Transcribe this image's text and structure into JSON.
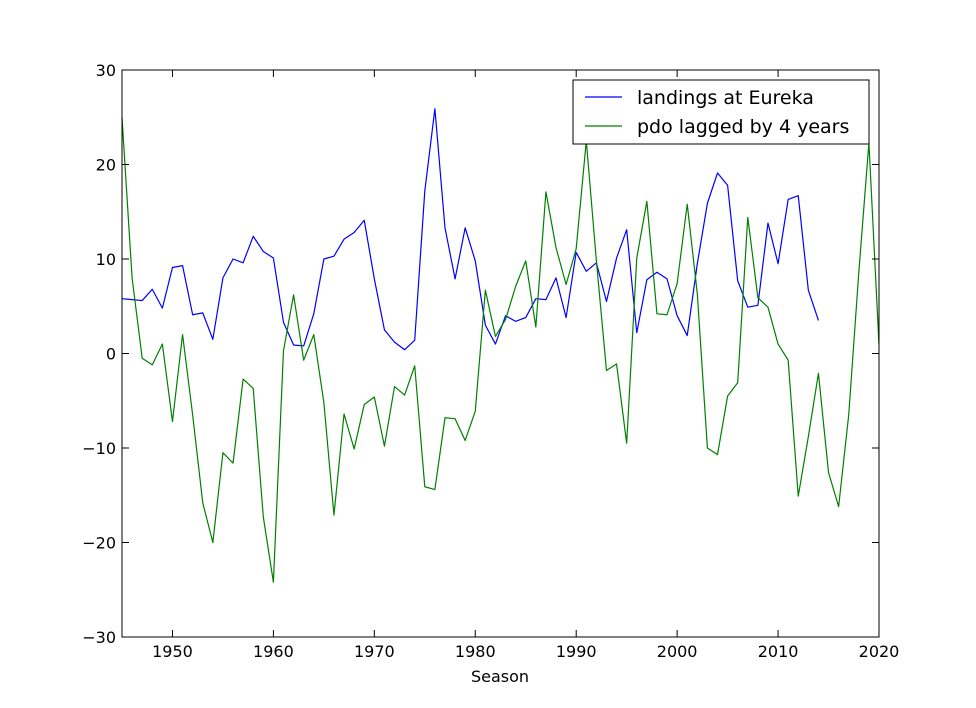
{
  "chart_data": {
    "type": "line",
    "title": "",
    "xlabel": "Season",
    "ylabel": "",
    "xlim": [
      1945,
      2020
    ],
    "ylim": [
      -30,
      30
    ],
    "x_ticks": [
      1950,
      1960,
      1970,
      1980,
      1990,
      2000,
      2010,
      2020
    ],
    "y_ticks": [
      -30,
      -20,
      -10,
      0,
      10,
      20,
      30
    ],
    "x_tick_labels": [
      "1950",
      "1960",
      "1970",
      "1980",
      "1990",
      "2000",
      "2010",
      "2020"
    ],
    "y_tick_labels": [
      "−30",
      "−20",
      "−10",
      "0",
      "10",
      "20",
      "30"
    ],
    "grid": false,
    "legend_position": "top-right",
    "series": [
      {
        "name": "landings at Eureka",
        "color": "#0000ff",
        "x": [
          1945,
          1946,
          1947,
          1948,
          1949,
          1950,
          1951,
          1952,
          1953,
          1954,
          1955,
          1956,
          1957,
          1958,
          1959,
          1960,
          1961,
          1962,
          1963,
          1964,
          1965,
          1966,
          1967,
          1968,
          1969,
          1970,
          1971,
          1972,
          1973,
          1974,
          1975,
          1976,
          1977,
          1978,
          1979,
          1980,
          1981,
          1982,
          1983,
          1984,
          1985,
          1986,
          1987,
          1988,
          1989,
          1990,
          1991,
          1992,
          1993,
          1994,
          1995,
          1996,
          1997,
          1998,
          1999,
          2000,
          2001,
          2002,
          2003,
          2004,
          2005,
          2006,
          2007,
          2008,
          2009,
          2010,
          2011,
          2012,
          2013,
          2014
        ],
        "y": [
          5.8,
          5.7,
          5.6,
          6.8,
          4.8,
          9.1,
          9.3,
          4.1,
          4.3,
          1.5,
          8.0,
          10.0,
          9.6,
          12.4,
          10.8,
          10.1,
          3.3,
          0.9,
          0.8,
          4.2,
          10.0,
          10.3,
          12.1,
          12.8,
          14.1,
          7.9,
          2.5,
          1.2,
          0.4,
          1.4,
          17.2,
          25.9,
          13.3,
          7.9,
          13.3,
          9.8,
          3.0,
          1.0,
          4.0,
          3.4,
          3.8,
          5.8,
          5.7,
          8.0,
          3.8,
          10.7,
          8.7,
          9.6,
          5.5,
          10.1,
          13.1,
          2.2,
          7.8,
          8.6,
          7.9,
          4.0,
          1.9,
          9.5,
          15.9,
          19.1,
          17.8,
          7.7,
          4.9,
          5.1,
          13.8,
          9.5,
          16.3,
          16.7,
          6.7,
          3.5
        ]
      },
      {
        "name": "pdo lagged by 4 years",
        "color": "#008000",
        "x": [
          1945,
          1946,
          1947,
          1948,
          1949,
          1950,
          1951,
          1952,
          1953,
          1954,
          1955,
          1956,
          1957,
          1958,
          1959,
          1960,
          1961,
          1962,
          1963,
          1964,
          1965,
          1966,
          1967,
          1968,
          1969,
          1970,
          1971,
          1972,
          1973,
          1974,
          1975,
          1976,
          1977,
          1978,
          1979,
          1980,
          1981,
          1982,
          1983,
          1984,
          1985,
          1986,
          1987,
          1988,
          1989,
          1990,
          1991,
          1992,
          1993,
          1994,
          1995,
          1996,
          1997,
          1998,
          1999,
          2000,
          2001,
          2002,
          2003,
          2004,
          2005,
          2006,
          2007,
          2008,
          2009,
          2010,
          2011,
          2012,
          2013,
          2014,
          2015,
          2016,
          2017,
          2018,
          2019,
          2020
        ],
        "y": [
          25.0,
          8.0,
          -0.5,
          -1.2,
          1.0,
          -7.2,
          2.0,
          -6.5,
          -15.8,
          -20.0,
          -10.5,
          -11.6,
          -2.7,
          -3.7,
          -17.3,
          -24.2,
          0.3,
          6.2,
          -0.7,
          2.0,
          -5.2,
          -17.1,
          -6.4,
          -10.1,
          -5.4,
          -4.6,
          -9.8,
          -3.5,
          -4.4,
          -1.3,
          -14.1,
          -14.4,
          -6.8,
          -6.9,
          -9.2,
          -6.1,
          6.7,
          1.8,
          3.6,
          7.1,
          9.8,
          2.8,
          17.1,
          11.2,
          7.3,
          11.1,
          22.5,
          9.8,
          -1.8,
          -1.1,
          -9.5,
          10.1,
          16.1,
          4.2,
          4.1,
          7.4,
          15.8,
          6.3,
          -10.0,
          -10.7,
          -4.5,
          -3.1,
          14.4,
          5.9,
          4.9,
          1.0,
          -0.7,
          -15.1,
          -8.8,
          -2.1,
          -12.6,
          -16.2,
          -6.5,
          8.6,
          22.3,
          0.9
        ]
      }
    ]
  }
}
